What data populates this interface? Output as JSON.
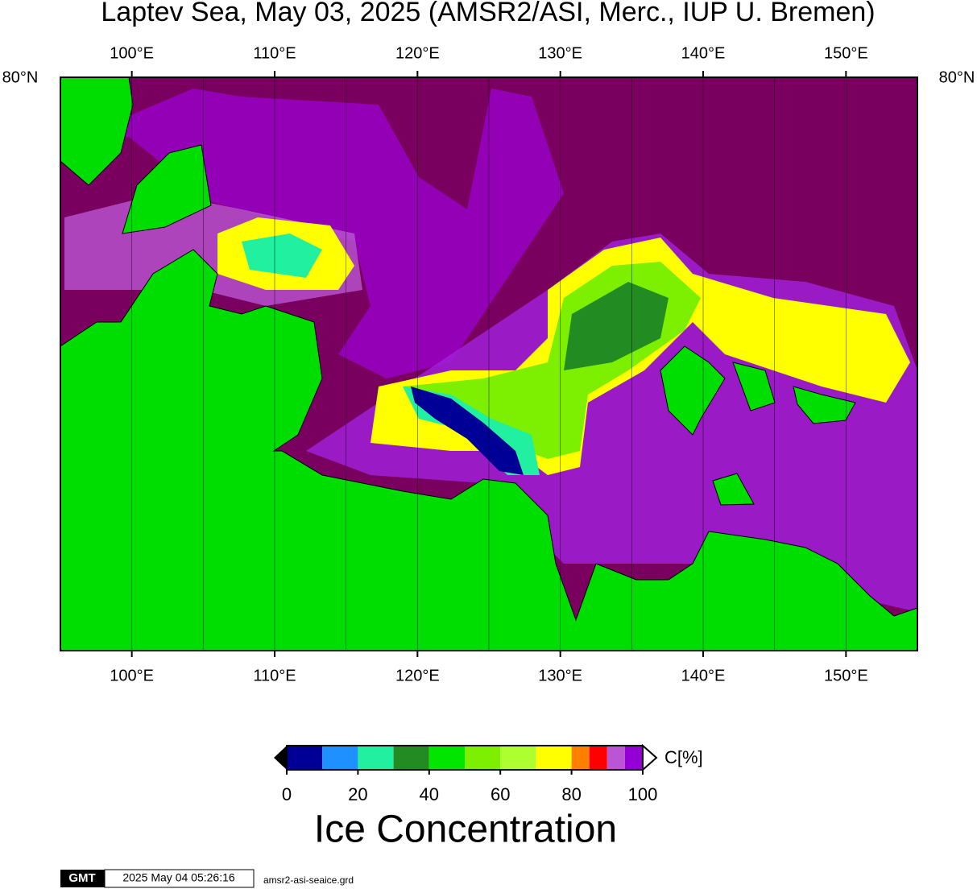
{
  "title": "Laptev Sea, May 03, 2025 (AMSR2/ASI, Merc., IUP U. Bremen)",
  "map": {
    "xlim": [
      95,
      155
    ],
    "xticks": [
      {
        "value": 100,
        "label": "100°E"
      },
      {
        "value": 110,
        "label": "110°E"
      },
      {
        "value": 120,
        "label": "120°E"
      },
      {
        "value": 130,
        "label": "130°E"
      },
      {
        "value": 140,
        "label": "140°E"
      },
      {
        "value": 150,
        "label": "150°E"
      }
    ],
    "lat_label": "80°N"
  },
  "colorbar": {
    "bounds": [
      0,
      10,
      20,
      30,
      40,
      50,
      60,
      70,
      80,
      85,
      90,
      95,
      100
    ],
    "colors": [
      "#000096",
      "#1e90ff",
      "#20f0a0",
      "#228b22",
      "#00e600",
      "#7cf000",
      "#adff2f",
      "#ffff00",
      "#ff8000",
      "#ff0000",
      "#ba55d3",
      "#9400d3"
    ],
    "ticks": [
      0,
      20,
      40,
      60,
      80,
      100
    ],
    "unit": "C[%]",
    "title": "Ice Concentration"
  },
  "footer": {
    "logo": "GMT",
    "timestamp": "2025 May 04 05:26:16",
    "file": "amsr2-asi-seaice.grd"
  }
}
